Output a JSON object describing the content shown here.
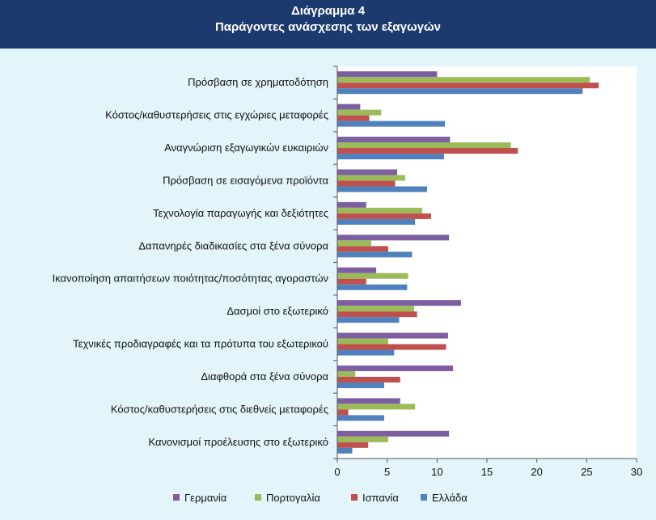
{
  "header": {
    "title": "Διάγραμμα 4",
    "subtitle": "Παράγοντες ανάσχεσης των εξαγωγών"
  },
  "chart_data": {
    "type": "bar",
    "orientation": "horizontal",
    "categories": [
      "Πρόσβαση σε χρηματοδότηση",
      "Κόστος/καθυστερήσεις στις εγχώριες μεταφορές",
      "Αναγνώριση εξαγωγικών ευκαιριών",
      "Πρόσβαση σε εισαγόμενα προϊόντα",
      "Τεχνολογία παραγωγής και δεξιότητες",
      "Δαπανηρές διαδικασίες στα ξένα σύνορα",
      "Ικανοποίηση απαιτήσεων ποιότητας/ποσότητας αγοραστών",
      "Δασμοί στο εξωτερικό",
      "Τεχνικές προδιαγραφές και τα πρότυπα του εξωτερικού",
      "Διαφθορά στα ξένα σύνορα",
      "Κόστος/καθυστερήσεις στις διεθνείς μεταφορές",
      "Κανονισμοί προέλευσης στο εξωτερικό"
    ],
    "series": [
      {
        "name": "Γερμανία",
        "color": "#7d5fa1",
        "values": [
          10.0,
          2.3,
          11.3,
          6.0,
          2.9,
          11.2,
          3.9,
          12.4,
          11.1,
          11.6,
          6.3,
          11.2
        ]
      },
      {
        "name": "Πορτογαλία",
        "color": "#9bbb59",
        "values": [
          25.3,
          4.4,
          17.4,
          6.8,
          8.5,
          3.4,
          7.1,
          7.7,
          5.1,
          1.8,
          7.8,
          5.1
        ]
      },
      {
        "name": "Ισπανία",
        "color": "#c0504d",
        "values": [
          26.2,
          3.2,
          18.1,
          5.8,
          9.4,
          5.1,
          2.9,
          8.0,
          10.9,
          6.3,
          1.1,
          3.1
        ]
      },
      {
        "name": "Ελλάδα",
        "color": "#4f81bd",
        "values": [
          24.6,
          10.8,
          10.7,
          9.0,
          7.8,
          7.5,
          7.0,
          6.2,
          5.7,
          4.7,
          4.7,
          1.5
        ]
      }
    ],
    "xlim": [
      0,
      30
    ],
    "xticks": [
      "0",
      "5",
      "10",
      "15",
      "20",
      "25",
      "30"
    ],
    "legend_position": "bottom",
    "grid": false
  }
}
